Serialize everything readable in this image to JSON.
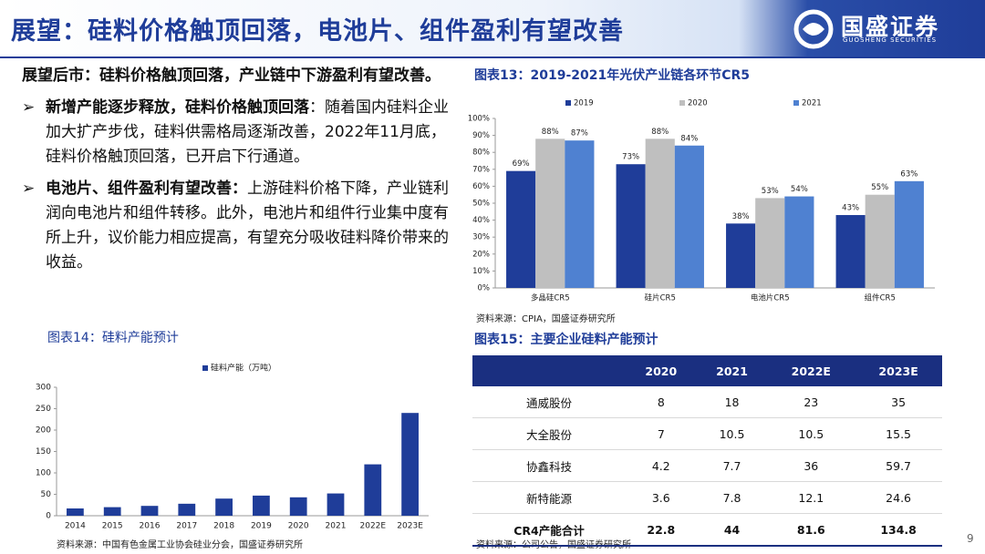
{
  "header": {
    "title": "展望：硅料价格触顶回落，电池片、组件盈利有望改善",
    "logo": "国盛证券",
    "logo_en": "GUOSHENG SECURITIES"
  },
  "outlook": {
    "heading": "展望后市：硅料价格触顶回落，产业链中下游盈利有望改善。",
    "bullets": [
      {
        "bold": "新增产能逐步释放，硅料价格触顶回落",
        "text": "：随着国内硅料企业加大扩产步伐，硅料供需格局逐渐改善，2022年11月底，硅料价格触顶回落，已开启下行通道。"
      },
      {
        "bold": "电池片、组件盈利有望改善：",
        "text": "上游硅料价格下降，产业链利润向电池片和组件转移。此外，电池片和组件行业集中度有所上升，议价能力相应提高，有望充分吸收硅料降价带来的收益。"
      }
    ]
  },
  "chart_data": [
    {
      "type": "bar",
      "title": "图表13：2019-2021年光伏产业链各环节CR5",
      "source": "资料来源：CPIA，国盛证券研究所",
      "categories": [
        "多晶硅CR5",
        "硅片CR5",
        "电池片CR5",
        "组件CR5"
      ],
      "series": [
        {
          "name": "2019",
          "color": "#1f3d99",
          "values": [
            69,
            73,
            38,
            43
          ],
          "value_labels": [
            "69%",
            "73%",
            "38%",
            "43%"
          ]
        },
        {
          "name": "2020",
          "color": "#bfbfbf",
          "values": [
            88,
            88,
            53,
            55
          ],
          "value_labels": [
            "88%",
            "88%",
            "53%",
            "55%"
          ]
        },
        {
          "name": "2021",
          "color": "#4f81d1",
          "values": [
            87,
            84,
            54,
            63
          ],
          "value_labels": [
            "87%",
            "84%",
            "54%",
            "63%"
          ]
        }
      ],
      "ylim": [
        0,
        100
      ],
      "yticks": [
        {
          "value": 0,
          "label": "0%"
        },
        {
          "value": 10,
          "label": "10%"
        },
        {
          "value": 20,
          "label": "20%"
        },
        {
          "value": 30,
          "label": "30%"
        },
        {
          "value": 40,
          "label": "40%"
        },
        {
          "value": 50,
          "label": "50%"
        },
        {
          "value": 60,
          "label": "60%"
        },
        {
          "value": 70,
          "label": "70%"
        },
        {
          "value": 80,
          "label": "80%"
        },
        {
          "value": 90,
          "label": "90%"
        },
        {
          "value": 100,
          "label": "100%"
        }
      ],
      "grid": false,
      "legend": "top"
    },
    {
      "type": "bar",
      "title": "图表14：硅料产能预计",
      "source": "资料来源：中国有色金属工业协会硅业分会，国盛证券研究所",
      "categories": [
        "2014",
        "2015",
        "2016",
        "2017",
        "2018",
        "2019",
        "2020",
        "2021",
        "2022E",
        "2023E"
      ],
      "series": [
        {
          "name": "硅料产能（万吨）",
          "color": "#1f3d99",
          "values": [
            17,
            20,
            23,
            28,
            40,
            47,
            43,
            52,
            120,
            240
          ]
        }
      ],
      "ylim": [
        0,
        300
      ],
      "yticks": [
        0,
        50,
        100,
        150,
        200,
        250,
        300
      ],
      "grid": false,
      "legend": "top"
    }
  ],
  "table": {
    "title": "图表15：主要企业硅料产能预计",
    "source": "资料来源：公司公告，国盛证券研究所",
    "columns": [
      "2020",
      "2021",
      "2022E",
      "2023E"
    ],
    "rows": [
      {
        "name": "通威股份",
        "values": [
          8,
          18,
          23,
          35
        ]
      },
      {
        "name": "大全股份",
        "values": [
          7,
          10.5,
          10.5,
          15.5
        ]
      },
      {
        "name": "协鑫科技",
        "values": [
          4.2,
          7.7,
          36,
          59.7
        ]
      },
      {
        "name": "新特能源",
        "values": [
          3.6,
          7.8,
          12.1,
          24.6
        ]
      },
      {
        "name": "CR4产能合计",
        "values": [
          22.8,
          44,
          81.6,
          134.8
        ]
      }
    ]
  },
  "page_number": "9"
}
